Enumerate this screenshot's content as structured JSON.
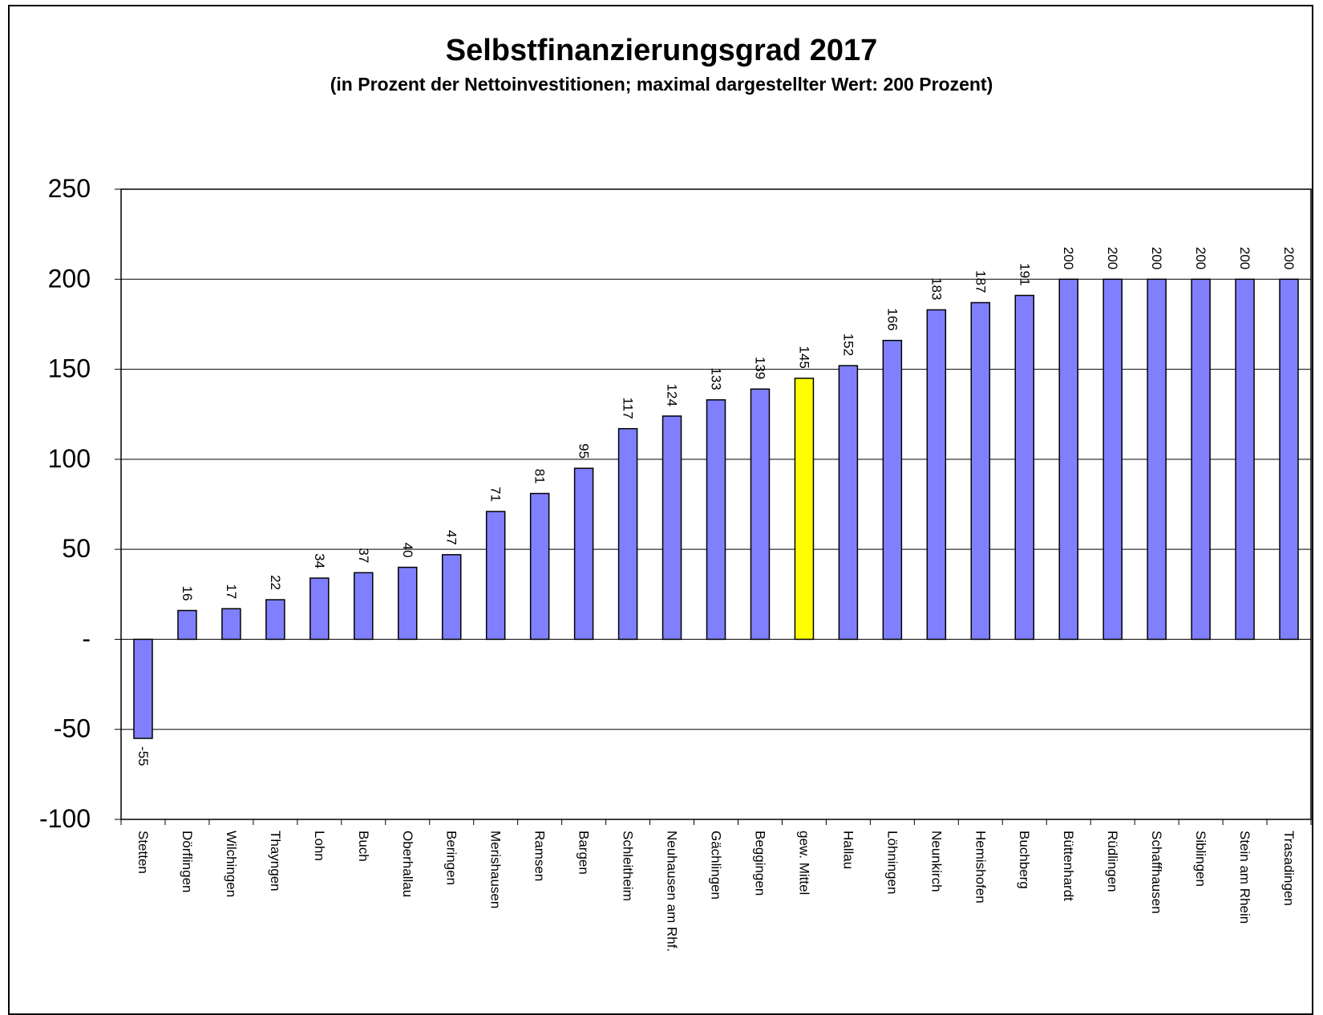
{
  "chart_data": {
    "type": "bar",
    "title": "Selbstfinanzierungsgrad 2017",
    "subtitle": "(in Prozent der Nettoinvestitionen; maximal dargestellter Wert: 200 Prozent)",
    "xlabel": "",
    "ylabel": "",
    "ylim": [
      -100,
      250
    ],
    "yticks": [
      -100,
      -50,
      0,
      50,
      100,
      150,
      200,
      250
    ],
    "ytick_labels": [
      "-100",
      "-50",
      "-",
      "50",
      "100",
      "150",
      "200",
      "250"
    ],
    "grid": true,
    "legend": "none",
    "categories": [
      "Stetten",
      "Dörflingen",
      "Wilchingen",
      "Thayngen",
      "Lohn",
      "Buch",
      "Oberhallau",
      "Beringen",
      "Merishausen",
      "Ramsen",
      "Bargen",
      "Schleitheim",
      "Neuhausen am Rhf.",
      "Gächlingen",
      "Beggingen",
      "gew. Mittel",
      "Hallau",
      "Löhningen",
      "Neunkirch",
      "Hemishofen",
      "Buchberg",
      "Büttenhardt",
      "Rüdlingen",
      "Schaffhausen",
      "Siblingen",
      "Stein am Rhein",
      "Trasadingen"
    ],
    "values": [
      -55,
      16,
      17,
      22,
      34,
      37,
      40,
      47,
      71,
      81,
      95,
      117,
      124,
      133,
      139,
      145,
      152,
      166,
      183,
      187,
      191,
      200,
      200,
      200,
      200,
      200,
      200
    ],
    "bar_color": "#8080ff",
    "highlight_category": "gew. Mittel",
    "highlight_color": "#ffff00"
  }
}
